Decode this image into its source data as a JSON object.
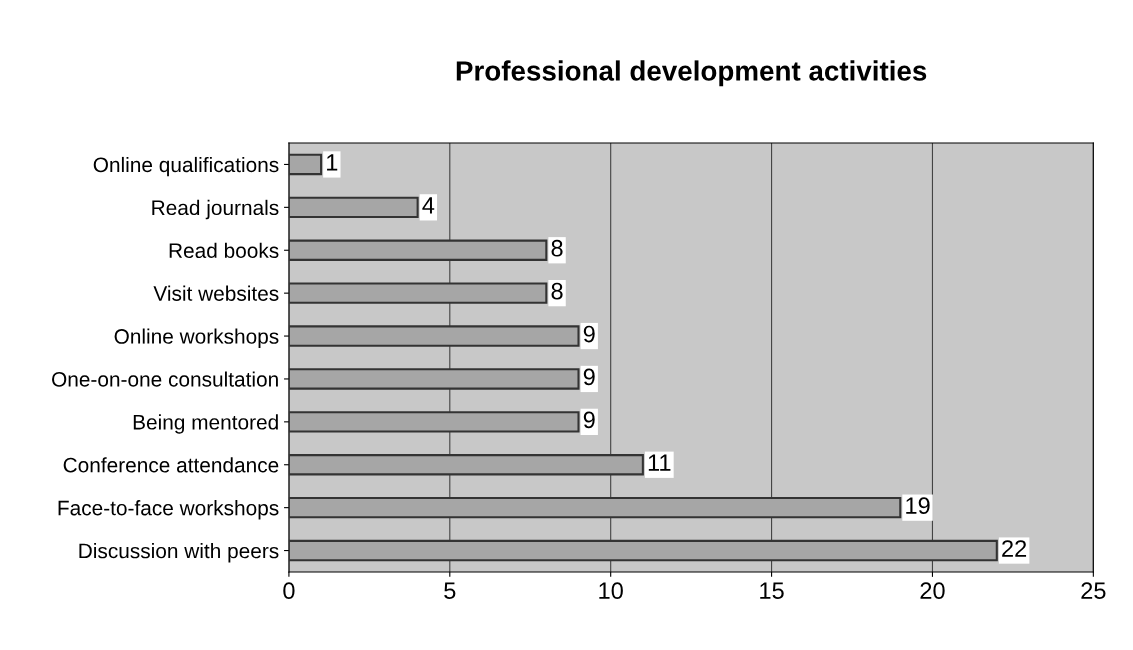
{
  "chart_data": {
    "type": "bar",
    "orientation": "horizontal",
    "title": "Professional development activities",
    "categories": [
      "Online qualifications",
      "Read journals",
      "Read books",
      "Visit websites",
      "Online workshops",
      "One-on-one consultation",
      "Being mentored",
      "Conference attendance",
      "Face-to-face workshops",
      "Discussion with peers"
    ],
    "values": [
      1,
      4,
      8,
      8,
      9,
      9,
      9,
      11,
      19,
      22
    ],
    "color": "#a6a6a6",
    "xlim": [
      0,
      25
    ],
    "xticks": [
      0,
      5,
      10,
      15,
      20,
      25
    ],
    "grid": "x",
    "data_labels": true
  }
}
